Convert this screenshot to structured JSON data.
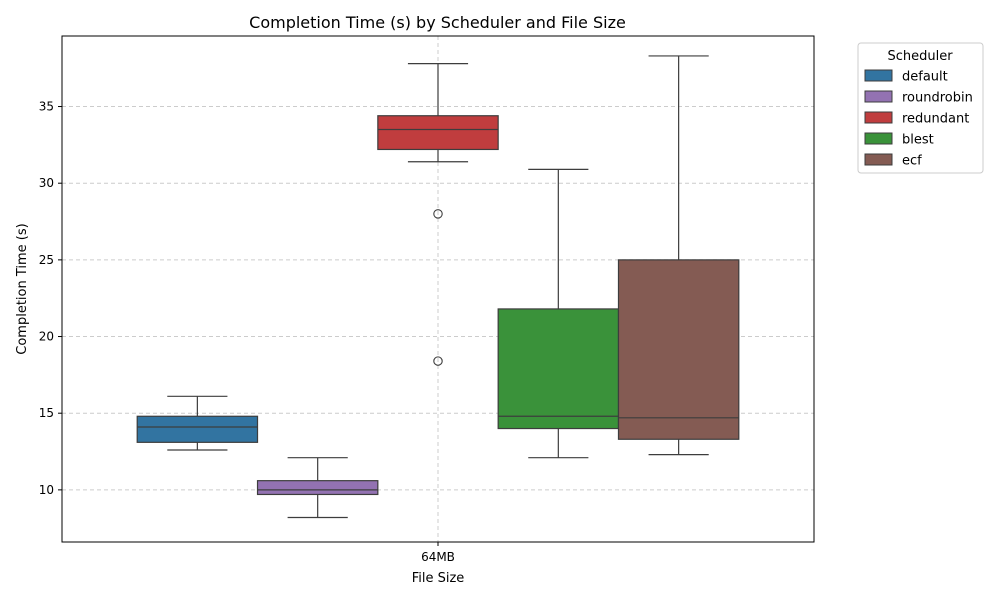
{
  "chart_data": {
    "type": "box",
    "title": "Completion Time (s) by Scheduler and File Size",
    "xlabel": "File Size",
    "ylabel": "Completion Time (s)",
    "categories": [
      "64MB"
    ],
    "ylim": [
      6.6,
      39.6
    ],
    "yticks": [
      10,
      15,
      20,
      25,
      30,
      35
    ],
    "grid": true,
    "legend": {
      "title": "Scheduler",
      "placement": "outside-top-right"
    },
    "series": [
      {
        "name": "default",
        "color": "#3274a1",
        "whisker_low": 12.6,
        "q1": 13.1,
        "median": 14.1,
        "q3": 14.8,
        "whisker_high": 16.1,
        "outliers": []
      },
      {
        "name": "roundrobin",
        "color": "#9372b2",
        "whisker_low": 8.2,
        "q1": 9.7,
        "median": 10.0,
        "q3": 10.6,
        "whisker_high": 12.1,
        "outliers": []
      },
      {
        "name": "redundant",
        "color": "#c03d3e",
        "whisker_low": 31.4,
        "q1": 32.2,
        "median": 33.5,
        "q3": 34.4,
        "whisker_high": 37.8,
        "outliers": [
          28.0,
          18.4
        ]
      },
      {
        "name": "blest",
        "color": "#3a923a",
        "whisker_low": 12.1,
        "q1": 14.0,
        "median": 14.8,
        "q3": 21.8,
        "whisker_high": 30.9,
        "outliers": []
      },
      {
        "name": "ecf",
        "color": "#845b53",
        "whisker_low": 12.3,
        "q1": 13.3,
        "median": 14.7,
        "q3": 25.0,
        "whisker_high": 38.3,
        "outliers": []
      }
    ]
  }
}
